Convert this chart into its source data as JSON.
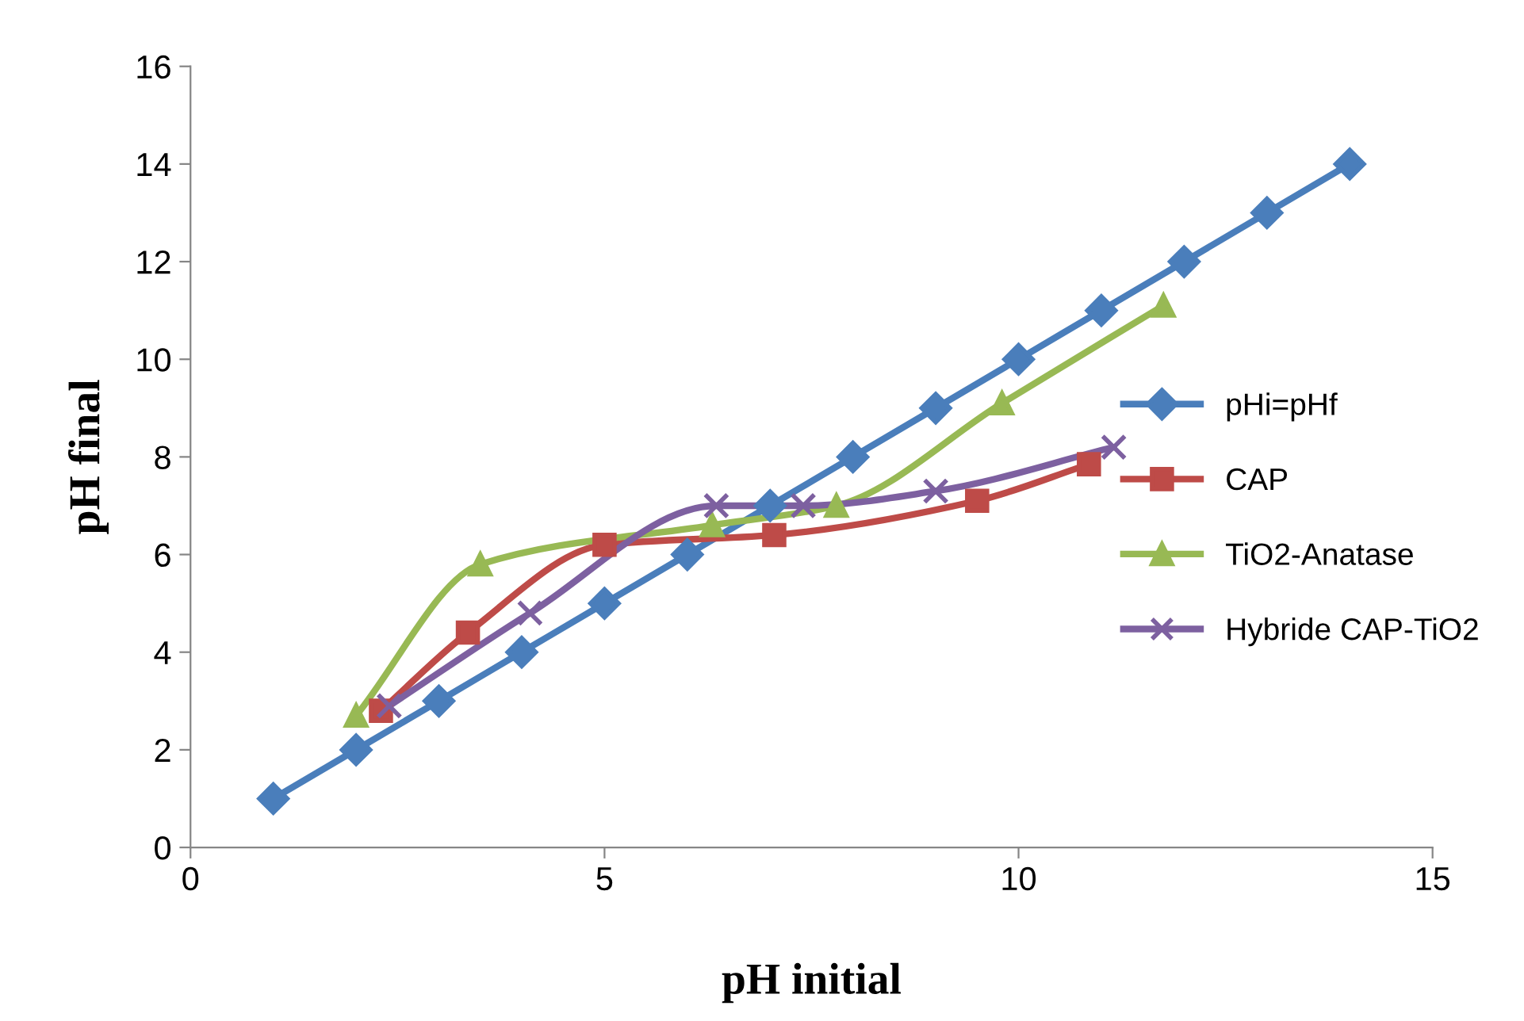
{
  "chart_data": {
    "type": "line",
    "xlabel": "pH initial",
    "ylabel": "pH final",
    "xlim": [
      0,
      15
    ],
    "xticks": [
      0,
      5,
      10,
      15
    ],
    "ylim": [
      0,
      16
    ],
    "yticks": [
      0,
      2,
      4,
      6,
      8,
      10,
      12,
      14,
      16
    ],
    "grid": false,
    "legend": "right",
    "series": [
      {
        "name": "pHi=pHf",
        "color": "#4a7ebb",
        "marker": "diamond",
        "x": [
          1,
          2,
          3,
          4,
          5,
          6,
          7,
          8,
          9,
          10,
          11,
          12,
          13,
          14
        ],
        "values": [
          1,
          2,
          3,
          4,
          5,
          6,
          7,
          8,
          9,
          10,
          11,
          12,
          13,
          14
        ]
      },
      {
        "name": "CAP",
        "color": "#be4b48",
        "marker": "square",
        "x": [
          2.3,
          3.35,
          5.0,
          7.05,
          9.5,
          10.85
        ],
        "values": [
          2.8,
          4.4,
          6.2,
          6.4,
          7.1,
          7.85
        ]
      },
      {
        "name": "TiO2-Anatase",
        "color": "#98b954",
        "marker": "triangle",
        "x": [
          2.0,
          3.5,
          6.3,
          7.8,
          9.8,
          11.75
        ],
        "values": [
          2.7,
          5.8,
          6.6,
          7.0,
          9.1,
          11.1
        ]
      },
      {
        "name": "Hybride CAP-TiO2",
        "color": "#7d60a0",
        "marker": "cross",
        "x": [
          2.4,
          4.1,
          6.35,
          7.4,
          9.0,
          11.15
        ],
        "values": [
          2.9,
          4.8,
          7.0,
          7.0,
          7.3,
          8.2
        ]
      }
    ]
  }
}
